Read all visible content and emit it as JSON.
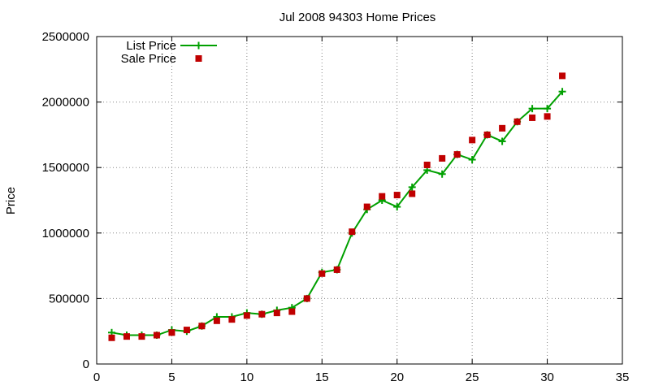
{
  "chart_data": {
    "type": "line",
    "title": "Jul 2008 94303 Home Prices",
    "xlabel": "",
    "ylabel": "Price",
    "xlim": [
      0,
      35
    ],
    "ylim": [
      0,
      2500000
    ],
    "xticks": [
      0,
      5,
      10,
      15,
      20,
      25,
      30,
      35
    ],
    "yticks": [
      0,
      500000,
      1000000,
      1500000,
      2000000,
      2500000
    ],
    "grid": true,
    "legend_position": "top-left",
    "series": [
      {
        "name": "List Price",
        "style": "line-with-plus-markers",
        "color": "#00a000",
        "x": [
          1,
          2,
          3,
          4,
          5,
          6,
          7,
          8,
          9,
          10,
          11,
          12,
          13,
          14,
          15,
          16,
          17,
          18,
          19,
          20,
          21,
          22,
          23,
          24,
          25,
          26,
          27,
          28,
          29,
          30,
          31
        ],
        "y": [
          240000,
          220000,
          220000,
          220000,
          260000,
          250000,
          290000,
          360000,
          360000,
          390000,
          380000,
          410000,
          430000,
          500000,
          700000,
          720000,
          1000000,
          1180000,
          1250000,
          1200000,
          1350000,
          1480000,
          1450000,
          1600000,
          1560000,
          1750000,
          1700000,
          1850000,
          1950000,
          1950000,
          2080000
        ]
      },
      {
        "name": "Sale Price",
        "style": "square-points",
        "color": "#c00000",
        "x": [
          1,
          2,
          3,
          4,
          5,
          6,
          7,
          8,
          9,
          10,
          11,
          12,
          13,
          14,
          15,
          16,
          17,
          18,
          19,
          20,
          21,
          22,
          23,
          24,
          25,
          26,
          27,
          28,
          29,
          30,
          31
        ],
        "y": [
          200000,
          210000,
          210000,
          220000,
          240000,
          260000,
          290000,
          330000,
          340000,
          370000,
          380000,
          390000,
          400000,
          500000,
          690000,
          720000,
          1010000,
          1200000,
          1280000,
          1290000,
          1300000,
          1520000,
          1570000,
          1600000,
          1710000,
          1750000,
          1800000,
          1850000,
          1880000,
          1890000,
          2200000
        ]
      }
    ]
  }
}
